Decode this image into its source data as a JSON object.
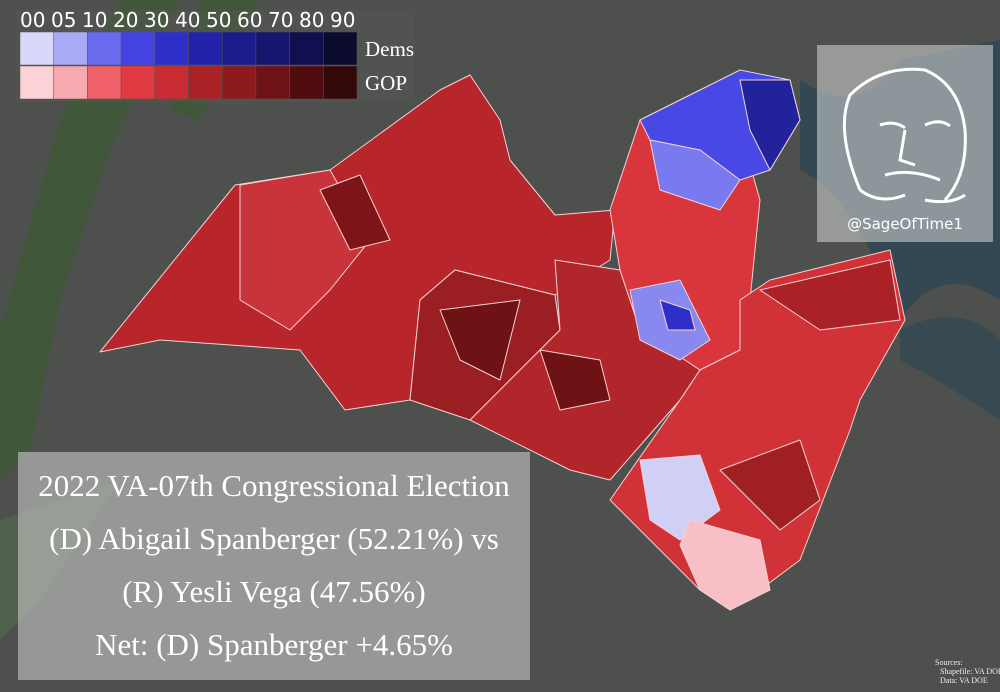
{
  "legend": {
    "labels": [
      "00",
      "05",
      "10",
      "20",
      "30",
      "40",
      "50",
      "60",
      "70",
      "80",
      "90"
    ],
    "rows": [
      {
        "label": "Dems",
        "colors": [
          "#d8d8fa",
          "#a9aaf5",
          "#6a6aef",
          "#4343e2",
          "#2e2ec8",
          "#2222aa",
          "#1b1b8c",
          "#16166e",
          "#101050",
          "#0b0b2e"
        ]
      },
      {
        "label": "GOP",
        "colors": [
          "#fcd2d6",
          "#f8a9b0",
          "#f06068",
          "#e23a42",
          "#c92c32",
          "#ab2226",
          "#8d1a1e",
          "#6f1317",
          "#510c10",
          "#330809"
        ]
      }
    ]
  },
  "title_box": {
    "lines": [
      "2022 VA-07th Congressional Election",
      "(D) Abigail Spanberger (52.21%) vs",
      "(R) Yesli Vega (47.56%)",
      "Net: (D) Spanberger +4.65%"
    ]
  },
  "watermark": {
    "handle": "@SageOfTime1"
  },
  "sources": {
    "lines": [
      "Sources:",
      "Shapefile: VA DOE",
      "Data: VA DOE"
    ]
  }
}
